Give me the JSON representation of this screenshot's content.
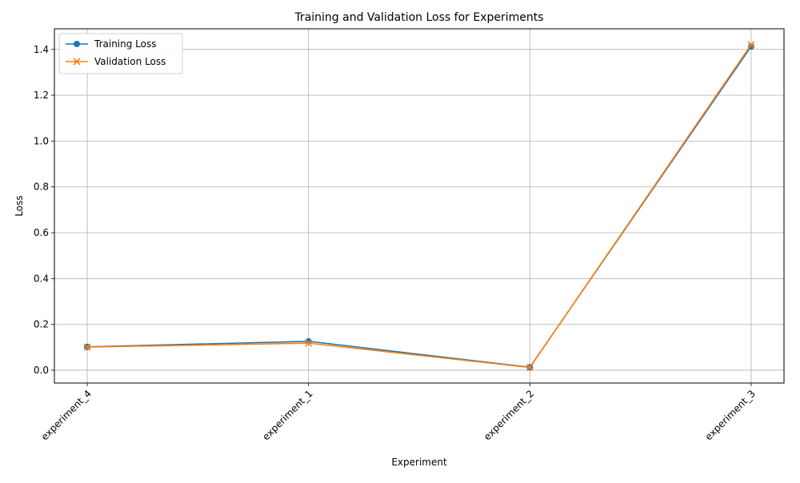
{
  "chart_data": {
    "type": "line",
    "title": "Training and Validation Loss for Experiments",
    "xlabel": "Experiment",
    "ylabel": "Loss",
    "categories": [
      "experiment_4",
      "experiment_1",
      "experiment_2",
      "experiment_3"
    ],
    "series": [
      {
        "name": "Training Loss",
        "values": [
          0.102,
          0.126,
          0.013,
          1.413
        ],
        "color": "#1f77b4",
        "marker": "circle"
      },
      {
        "name": "Validation Loss",
        "values": [
          0.101,
          0.118,
          0.012,
          1.421
        ],
        "color": "#ff7f0e",
        "marker": "x"
      }
    ],
    "ylim": [
      -0.056,
      1.49
    ],
    "yticks": [
      0.0,
      0.2,
      0.4,
      0.6,
      0.8,
      1.0,
      1.2,
      1.4
    ],
    "ytick_labels": [
      "0.0",
      "0.2",
      "0.4",
      "0.6",
      "0.8",
      "1.0",
      "1.2",
      "1.4"
    ],
    "grid": true,
    "legend_position": "top-left",
    "x_tick_rotation": 45
  }
}
